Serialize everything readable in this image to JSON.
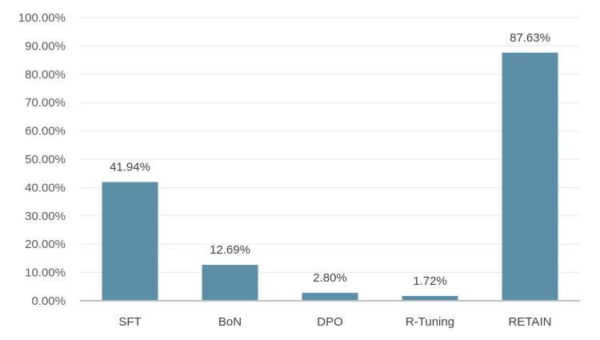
{
  "chart_data": {
    "type": "bar",
    "categories": [
      "SFT",
      "BoN",
      "DPO",
      "R-Tuning",
      "RETAIN"
    ],
    "values": [
      41.94,
      12.69,
      2.8,
      1.72,
      87.63
    ],
    "data_labels": [
      "41.94%",
      "12.69%",
      "2.80%",
      "1.72%",
      "87.63%"
    ],
    "y_ticks": [
      "0.00%",
      "10.00%",
      "20.00%",
      "30.00%",
      "40.00%",
      "50.00%",
      "60.00%",
      "70.00%",
      "80.00%",
      "90.00%",
      "100.00%"
    ],
    "ylim": [
      0,
      100
    ],
    "y_tick_step": 10,
    "grid": true,
    "legend": "none",
    "colors": {
      "bar": "#5B8FA8",
      "grid": "#E8E8E8",
      "axis": "#BFBFBF"
    }
  }
}
